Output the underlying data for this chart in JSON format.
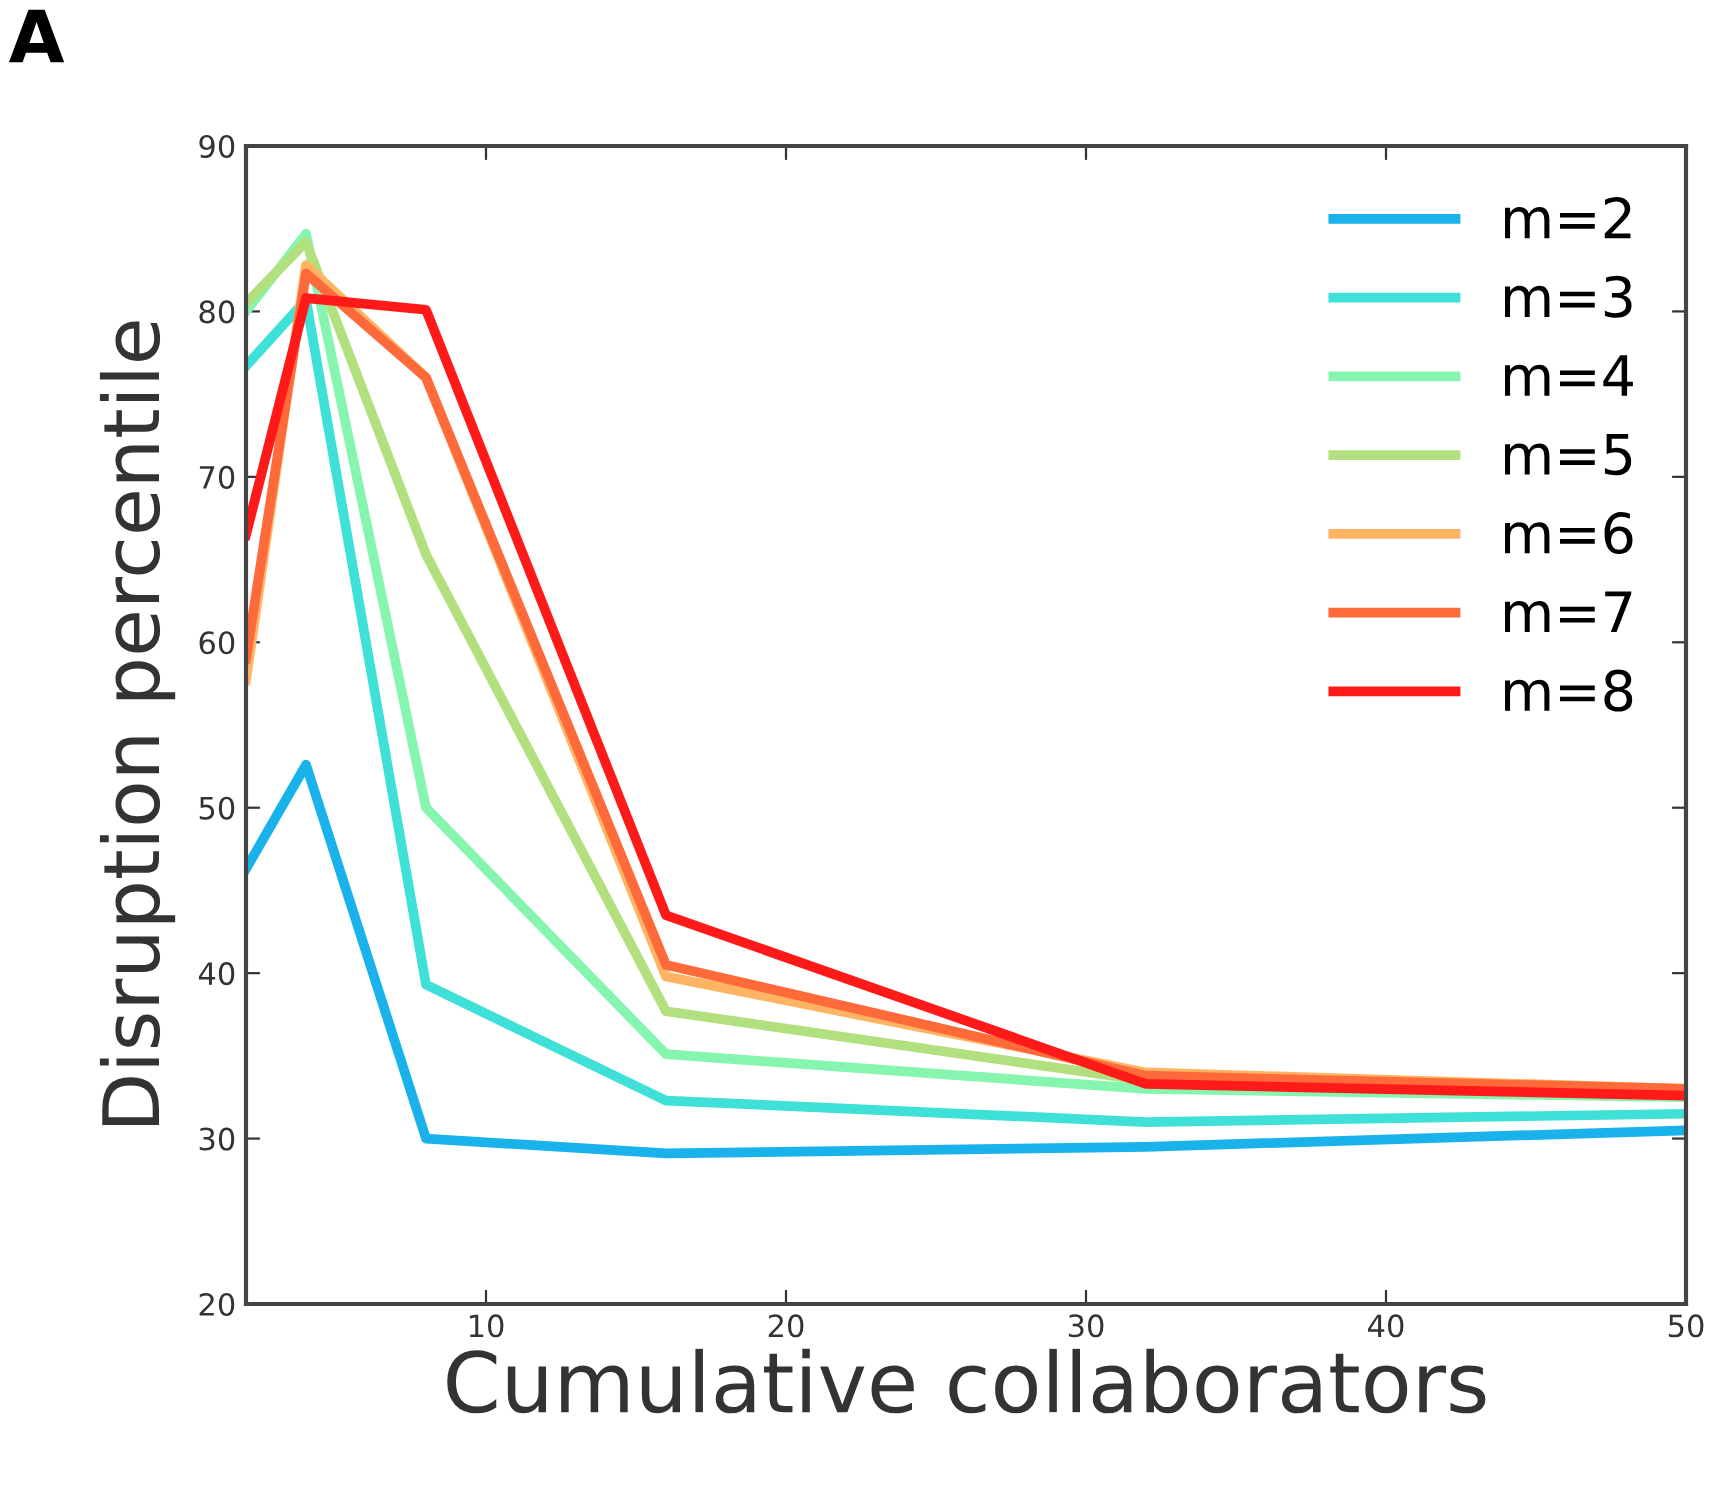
{
  "chart_data": {
    "type": "line",
    "xlabel": "Cumulative collaborators",
    "ylabel": "Disruption percentile",
    "annotations": [
      "A"
    ],
    "x": [
      2,
      4,
      8,
      16,
      32,
      50
    ],
    "series": [
      {
        "name": "m=2",
        "color": "#1ab2ea",
        "values": [
          46.3,
          52.6,
          30,
          29.1,
          29.5,
          30.5
        ]
      },
      {
        "name": "m=3",
        "color": "#3fe0d8",
        "values": [
          76.7,
          80.7,
          39.3,
          32.3,
          31,
          31.5
        ]
      },
      {
        "name": "m=4",
        "color": "#86f5b0",
        "values": [
          80,
          84.7,
          50,
          35.1,
          33,
          32.5
        ]
      },
      {
        "name": "m=5",
        "color": "#b2e07e",
        "values": [
          80.5,
          84.2,
          65.3,
          37.7,
          33.5,
          null
        ]
      },
      {
        "name": "m=6",
        "color": "#ffb463",
        "values": [
          57.7,
          82.8,
          76,
          39.8,
          34,
          33
        ]
      },
      {
        "name": "m=7",
        "color": "#ff6a3a",
        "values": [
          59,
          82.3,
          76,
          40.5,
          33.8,
          33
        ]
      },
      {
        "name": "m=8",
        "color": "#ff1a1a",
        "values": [
          66.5,
          80.8,
          80.1,
          43.5,
          33.3,
          32.6
        ]
      }
    ],
    "xlim": [
      2,
      50
    ],
    "xticks": [
      10,
      20,
      30,
      40,
      50
    ],
    "ylim": [
      20,
      90
    ],
    "yticks": [
      20,
      30,
      40,
      50,
      60,
      70,
      80,
      90
    ],
    "grid": false,
    "legend": "top right",
    "marker": "none",
    "line_style": "solid"
  }
}
